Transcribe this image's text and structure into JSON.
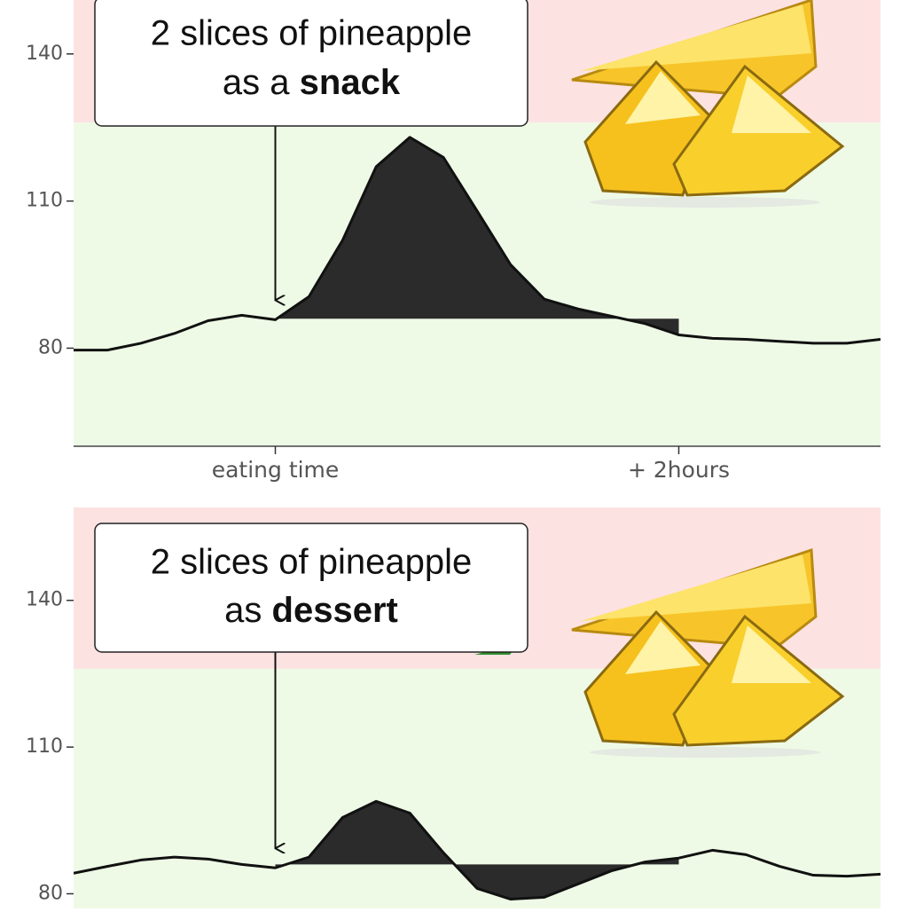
{
  "chart_data": [
    {
      "type": "line",
      "annotation": {
        "line1": "2 slices of pineapple",
        "line2": "as a",
        "emphasis": "snack"
      },
      "x": [
        -60,
        -50,
        -40,
        -30,
        -20,
        -10,
        0,
        10,
        20,
        30,
        40,
        50,
        60,
        70,
        80,
        90,
        100,
        110,
        120,
        130,
        140,
        150,
        160,
        170,
        180
      ],
      "values": [
        79.6,
        79.6,
        81,
        83,
        85.6,
        86.7,
        85.8,
        90.5,
        102,
        117,
        123,
        118.9,
        108,
        97,
        90,
        88,
        86.5,
        85,
        82.7,
        82,
        81.8,
        81.4,
        81,
        81,
        81.8
      ],
      "color": "#111111",
      "fill_color": "#2b2b2b",
      "fill_baseline": 86,
      "fill_range": [
        0,
        120
      ],
      "threshold": 126,
      "band_colors": {
        "high": "#fde2e2",
        "low": "#eefae6"
      },
      "xlim": [
        -60,
        180
      ],
      "xticks": [
        {
          "value": 0,
          "label": "eating time"
        },
        {
          "value": 120,
          "label": "+ 2hours"
        }
      ],
      "ylim": [
        60,
        151
      ],
      "yticks": [
        80,
        110,
        140
      ]
    },
    {
      "type": "line",
      "annotation": {
        "line1": "2 slices of pineapple",
        "line2": "as",
        "emphasis": "dessert"
      },
      "x": [
        -60,
        -50,
        -40,
        -30,
        -20,
        -10,
        0,
        10,
        20,
        30,
        40,
        50,
        60,
        70,
        80,
        90,
        100,
        110,
        120,
        130,
        140,
        150,
        160,
        170,
        180
      ],
      "values": [
        84.2,
        85.6,
        86.9,
        87.5,
        87.1,
        86,
        85.3,
        87.5,
        95.6,
        98.9,
        96.5,
        88.4,
        81.1,
        78.9,
        79.3,
        82,
        84.7,
        86.5,
        87.3,
        88.9,
        88,
        85.6,
        83.8,
        83.6,
        84
      ],
      "color": "#111111",
      "fill_color": "#2b2b2b",
      "fill_baseline": 86,
      "fill_range": [
        0,
        120
      ],
      "threshold": 126,
      "band_colors": {
        "high": "#fde2e2",
        "low": "#eefae6"
      },
      "xlim": [
        -60,
        180
      ],
      "ylim": [
        77,
        159
      ],
      "yticks": [
        80,
        110,
        140
      ]
    }
  ]
}
